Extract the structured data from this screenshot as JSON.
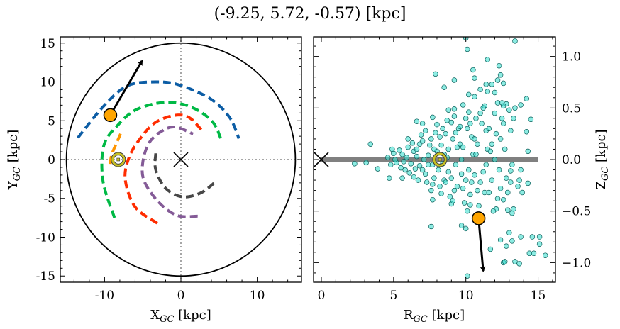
{
  "figure": {
    "title": "(-9.25, 5.72, -0.57) [kpc]"
  },
  "chart_data": [
    {
      "type": "line",
      "panel": "left",
      "xlabel": {
        "var": "X",
        "sub": "GC",
        "unit": " [kpc]"
      },
      "ylabel": {
        "var": "Y",
        "sub": "GC",
        "unit": " [kpc]"
      },
      "xlim": [
        -15.8,
        15.8
      ],
      "ylim": [
        -15.8,
        15.8
      ],
      "xticks": [
        "-10",
        "0",
        "10"
      ],
      "xtick_values": [
        -10,
        0,
        10
      ],
      "yticks": [
        "-15",
        "-10",
        "-5",
        "0",
        "5",
        "10",
        "15"
      ],
      "ytick_values": [
        -15,
        -10,
        -5,
        0,
        5,
        10,
        15
      ],
      "grid": false,
      "reference_lines": {
        "x": 0,
        "y": 0,
        "style": "dotted",
        "color": "#888888"
      },
      "boundary_circle_radius": 15,
      "galactic_center_marker": {
        "x": 0,
        "y": 0,
        "symbol": "x"
      },
      "sun": {
        "x": -8.2,
        "y": 0
      },
      "object": {
        "x": -9.25,
        "y": 5.72,
        "color": "#ffa500",
        "velocity_arrow_to": [
          -5.1,
          12.7
        ]
      },
      "series": [
        {
          "color": "#0c5da5",
          "points": [
            [
              -13.5,
              2.8
            ],
            [
              -10.1,
              6.9
            ],
            [
              -7.0,
              9.5
            ],
            [
              -3.3,
              10.0
            ],
            [
              -0.2,
              9.6
            ],
            [
              3.9,
              7.8
            ],
            [
              6.4,
              5.4
            ],
            [
              7.6,
              2.7
            ]
          ]
        },
        {
          "color": "#00b945",
          "points": [
            [
              -8.7,
              -7.5
            ],
            [
              -10.2,
              -2.8
            ],
            [
              -10.1,
              1.8
            ],
            [
              -8.2,
              4.5
            ],
            [
              -5.7,
              6.5
            ],
            [
              -1.7,
              7.4
            ],
            [
              1.7,
              6.6
            ],
            [
              4.2,
              4.8
            ],
            [
              5.3,
              2.5
            ]
          ]
        },
        {
          "color": "#ff9500",
          "points": [
            [
              -7.9,
              3.3
            ],
            [
              -8.4,
              2.2
            ],
            [
              -9.1,
              0.5
            ],
            [
              -9.3,
              -1.1
            ]
          ]
        },
        {
          "color": "#ff2c00",
          "points": [
            [
              -3.1,
              -8.2
            ],
            [
              -6.0,
              -6.1
            ],
            [
              -7.3,
              -2.5
            ],
            [
              -6.7,
              0.5
            ],
            [
              -5.1,
              3.0
            ],
            [
              -3.3,
              4.8
            ],
            [
              -0.8,
              5.7
            ],
            [
              1.1,
              5.4
            ],
            [
              2.8,
              3.7
            ]
          ]
        },
        {
          "color": "#845b97",
          "points": [
            [
              2.2,
              -7.3
            ],
            [
              -0.5,
              -7.2
            ],
            [
              -2.9,
              -5.5
            ],
            [
              -4.8,
              -2.8
            ],
            [
              -5.0,
              -0.4
            ],
            [
              -4.2,
              2.1
            ],
            [
              -2.6,
              3.6
            ],
            [
              -0.8,
              4.2
            ],
            [
              1.6,
              3.3
            ]
          ]
        },
        {
          "color": "#474747",
          "points": [
            [
              -3.3,
              0.8
            ],
            [
              -3.3,
              -1.3
            ],
            [
              -2.0,
              -3.7
            ],
            [
              0.2,
              -4.8
            ],
            [
              2.6,
              -4.3
            ],
            [
              4.5,
              -2.9
            ]
          ]
        }
      ]
    },
    {
      "type": "scatter",
      "panel": "right",
      "xlabel": {
        "var": "R",
        "sub": "GC",
        "unit": " [kpc]"
      },
      "ylabel": {
        "var": "Z",
        "sub": "GC",
        "unit": " [kpc]"
      },
      "xlim": [
        -0.54,
        16.2
      ],
      "ylim": [
        -1.19,
        1.19
      ],
      "xticks": [
        "0",
        "5",
        "10",
        "15"
      ],
      "xtick_values": [
        0,
        5,
        10,
        15
      ],
      "yticks": [
        "−1.0",
        "−0.5",
        "0.0",
        "0.5",
        "1.0"
      ],
      "ytick_values": [
        -1.0,
        -0.5,
        0.0,
        0.5,
        1.0
      ],
      "ytick_side": "right",
      "grid": false,
      "disk_line": {
        "x": [
          0,
          15
        ],
        "y": 0,
        "color": "#808080"
      },
      "galactic_center_marker": {
        "x": 0,
        "y": 0,
        "symbol": "x"
      },
      "sun": {
        "x": 8.2,
        "y": 0
      },
      "object": {
        "x": 10.88,
        "y": -0.57,
        "color": "#ffa500",
        "velocity_arrow_to": [
          11.2,
          -1.08
        ]
      },
      "point_color": "#40e0d0",
      "points": [
        [
          10.0,
          1.18
        ],
        [
          13.4,
          1.15
        ],
        [
          10.1,
          1.07
        ],
        [
          11.5,
          0.97
        ],
        [
          12.3,
          0.91
        ],
        [
          10.5,
          0.87
        ],
        [
          12.4,
          0.82
        ],
        [
          7.9,
          0.83
        ],
        [
          10.6,
          0.79
        ],
        [
          9.2,
          0.77
        ],
        [
          12.2,
          0.77
        ],
        [
          12.6,
          0.74
        ],
        [
          8.5,
          0.7
        ],
        [
          11.4,
          0.73
        ],
        [
          11.8,
          0.73
        ],
        [
          11.0,
          0.68
        ],
        [
          11.5,
          0.66
        ],
        [
          12.0,
          0.65
        ],
        [
          10.2,
          0.63
        ],
        [
          10.6,
          0.61
        ],
        [
          14.2,
          0.59
        ],
        [
          12.5,
          0.55
        ],
        [
          12.8,
          0.54
        ],
        [
          13.8,
          0.53
        ],
        [
          13.4,
          0.5
        ],
        [
          9.8,
          0.53
        ],
        [
          8.8,
          0.48
        ],
        [
          9.2,
          0.49
        ],
        [
          11.3,
          0.52
        ],
        [
          6.6,
          0.37
        ],
        [
          7.0,
          0.35
        ],
        [
          7.7,
          0.41
        ],
        [
          14.5,
          0.39
        ],
        [
          14.2,
          0.27
        ],
        [
          3.4,
          0.15
        ],
        [
          14.3,
          0.08
        ],
        [
          2.3,
          -0.04
        ],
        [
          3.1,
          -0.03
        ],
        [
          3.9,
          -0.09
        ],
        [
          4.7,
          -0.18
        ],
        [
          5.6,
          -0.18
        ],
        [
          13.8,
          -0.1
        ],
        [
          13.1,
          -0.11
        ],
        [
          13.1,
          -0.22
        ],
        [
          13.7,
          -0.2
        ],
        [
          14.3,
          -0.23
        ],
        [
          13.6,
          -0.26
        ],
        [
          13.9,
          -0.32
        ],
        [
          7.7,
          -0.39
        ],
        [
          9.0,
          -0.43
        ],
        [
          10.3,
          -0.44
        ],
        [
          12.6,
          -0.39
        ],
        [
          12.1,
          -0.48
        ],
        [
          12.9,
          -0.49
        ],
        [
          13.3,
          -0.48
        ],
        [
          13.2,
          -0.52
        ],
        [
          7.6,
          -0.65
        ],
        [
          9.7,
          -0.64
        ],
        [
          10.0,
          -0.67
        ],
        [
          13.0,
          -0.71
        ],
        [
          13.8,
          -0.75
        ],
        [
          12.4,
          -0.78
        ],
        [
          13.2,
          -0.79
        ],
        [
          14.6,
          -0.75
        ],
        [
          15.1,
          -0.75
        ],
        [
          15.1,
          -0.82
        ],
        [
          12.8,
          -0.84
        ],
        [
          11.7,
          -0.87
        ],
        [
          14.4,
          -0.91
        ],
        [
          14.7,
          -0.91
        ],
        [
          15.5,
          -0.93
        ],
        [
          12.6,
          -1.0
        ],
        [
          12.7,
          -0.99
        ],
        [
          13.4,
          -0.99
        ],
        [
          13.7,
          -1.01
        ],
        [
          10.1,
          -1.13
        ],
        [
          4.6,
          0.02
        ],
        [
          4.8,
          -0.05
        ],
        [
          5.0,
          0.06
        ],
        [
          5.2,
          -0.03
        ],
        [
          5.4,
          0.09
        ],
        [
          5.1,
          0.0
        ],
        [
          5.5,
          -0.08
        ],
        [
          4.9,
          0.1
        ],
        [
          5.6,
          0.05
        ],
        [
          5.8,
          -0.1
        ],
        [
          6.0,
          0.12
        ],
        [
          6.2,
          -0.04
        ],
        [
          6.4,
          0.08
        ],
        [
          5.9,
          0.02
        ],
        [
          6.1,
          -0.13
        ],
        [
          6.3,
          0.16
        ],
        [
          5.7,
          -0.02
        ],
        [
          6.5,
          -0.09
        ],
        [
          6.0,
          0.2
        ],
        [
          6.4,
          -0.17
        ],
        [
          6.6,
          0.1
        ],
        [
          6.8,
          -0.06
        ],
        [
          7.0,
          0.18
        ],
        [
          7.2,
          -0.14
        ],
        [
          7.4,
          0.04
        ],
        [
          6.7,
          -0.2
        ],
        [
          6.9,
          0.24
        ],
        [
          7.1,
          0.0
        ],
        [
          7.3,
          -0.22
        ],
        [
          7.5,
          0.14
        ],
        [
          6.6,
          0.03
        ],
        [
          7.0,
          -0.1
        ],
        [
          7.2,
          0.28
        ],
        [
          6.8,
          0.15
        ],
        [
          7.4,
          -0.05
        ],
        [
          7.6,
          0.2
        ],
        [
          7.8,
          -0.18
        ],
        [
          8.0,
          0.08
        ],
        [
          8.2,
          -0.26
        ],
        [
          8.4,
          0.3
        ],
        [
          7.7,
          -0.05
        ],
        [
          7.9,
          0.26
        ],
        [
          8.1,
          -0.1
        ],
        [
          8.3,
          0.14
        ],
        [
          8.5,
          -0.2
        ],
        [
          7.6,
          -0.3
        ],
        [
          8.0,
          0.34
        ],
        [
          8.4,
          -0.04
        ],
        [
          7.8,
          0.1
        ],
        [
          8.2,
          0.22
        ],
        [
          8.5,
          0.05
        ],
        [
          7.7,
          -0.24
        ],
        [
          8.3,
          -0.33
        ],
        [
          8.6,
          0.25
        ],
        [
          8.8,
          -0.12
        ],
        [
          9.0,
          0.36
        ],
        [
          9.2,
          -0.3
        ],
        [
          9.4,
          0.12
        ],
        [
          8.7,
          0.02
        ],
        [
          8.9,
          -0.36
        ],
        [
          9.1,
          0.2
        ],
        [
          9.3,
          -0.05
        ],
        [
          9.5,
          0.3
        ],
        [
          8.6,
          -0.22
        ],
        [
          9.0,
          -0.18
        ],
        [
          9.2,
          0.42
        ],
        [
          8.8,
          0.1
        ],
        [
          9.4,
          -0.26
        ],
        [
          9.1,
          -0.4
        ],
        [
          8.7,
          0.38
        ],
        [
          9.3,
          0.26
        ],
        [
          9.6,
          0.15
        ],
        [
          9.8,
          -0.28
        ],
        [
          10.0,
          0.4
        ],
        [
          10.2,
          -0.1
        ],
        [
          10.4,
          0.22
        ],
        [
          9.7,
          0.0
        ],
        [
          9.9,
          -0.42
        ],
        [
          10.1,
          0.3
        ],
        [
          10.3,
          -0.34
        ],
        [
          10.5,
          0.05
        ],
        [
          9.6,
          0.32
        ],
        [
          10.0,
          -0.2
        ],
        [
          10.2,
          0.46
        ],
        [
          9.8,
          0.12
        ],
        [
          10.4,
          -0.22
        ],
        [
          10.1,
          -0.5
        ],
        [
          9.7,
          -0.14
        ],
        [
          10.3,
          0.35
        ],
        [
          10.6,
          0.2
        ],
        [
          10.8,
          -0.3
        ],
        [
          11.0,
          0.45
        ],
        [
          11.2,
          -0.12
        ],
        [
          11.4,
          0.28
        ],
        [
          10.7,
          0.05
        ],
        [
          10.9,
          -0.45
        ],
        [
          11.1,
          0.35
        ],
        [
          11.3,
          -0.32
        ],
        [
          11.5,
          0.1
        ],
        [
          10.6,
          -0.15
        ],
        [
          11.0,
          -0.22
        ],
        [
          11.2,
          0.5
        ],
        [
          10.8,
          0.15
        ],
        [
          11.4,
          -0.05
        ],
        [
          11.1,
          -0.55
        ],
        [
          10.7,
          0.4
        ],
        [
          11.6,
          0.3
        ],
        [
          11.8,
          -0.2
        ],
        [
          12.0,
          0.45
        ],
        [
          12.2,
          -0.38
        ],
        [
          12.4,
          0.2
        ],
        [
          11.7,
          0.08
        ],
        [
          11.9,
          -0.5
        ],
        [
          12.1,
          0.25
        ],
        [
          12.3,
          -0.1
        ],
        [
          12.5,
          0.4
        ],
        [
          11.6,
          -0.32
        ],
        [
          12.0,
          0.0
        ],
        [
          12.2,
          0.55
        ],
        [
          11.8,
          0.15
        ],
        [
          12.4,
          -0.28
        ],
        [
          12.6,
          0.35
        ],
        [
          12.8,
          -0.18
        ],
        [
          13.0,
          0.48
        ],
        [
          13.2,
          -0.05
        ],
        [
          12.7,
          0.1
        ],
        [
          13.1,
          0.28
        ],
        [
          12.9,
          -0.32
        ],
        [
          13.3,
          0.4
        ],
        [
          12.6,
          0.52
        ]
      ]
    }
  ]
}
